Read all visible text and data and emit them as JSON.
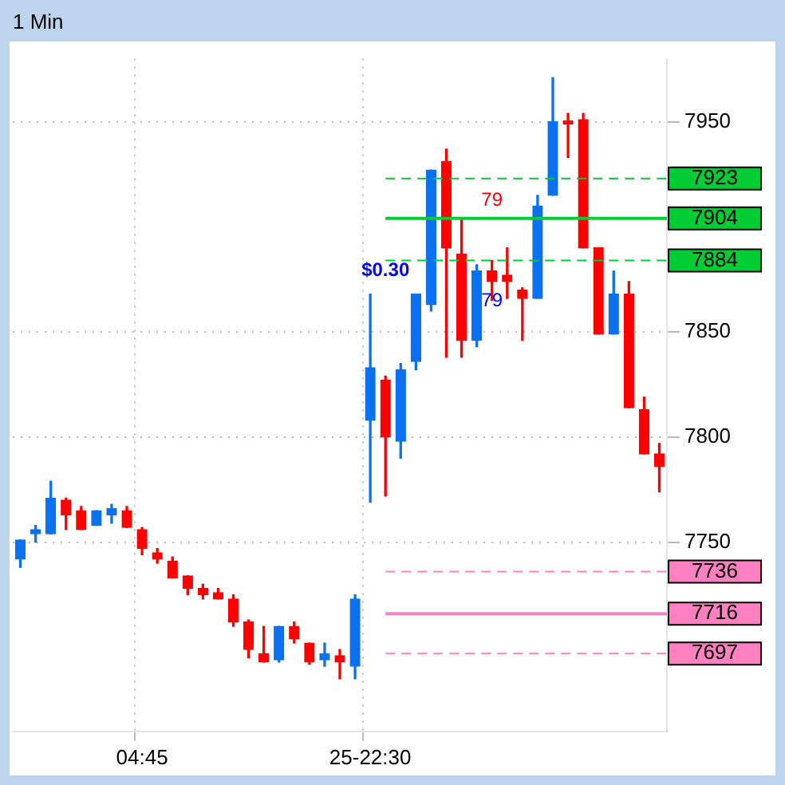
{
  "chart_data": {
    "type": "candlestick",
    "title": "1 Min",
    "categories": [
      null,
      null,
      null,
      null,
      null,
      null,
      null,
      null,
      "04:45",
      null,
      null,
      null,
      null,
      null,
      null,
      null,
      null,
      null,
      null,
      null,
      null,
      null,
      null,
      "25-22:30",
      null,
      null,
      null,
      null,
      null,
      null,
      null,
      null,
      null,
      null,
      null,
      null,
      null,
      null,
      null,
      null,
      null,
      null,
      null
    ],
    "ohlc": [
      [
        7742,
        7751,
        7738,
        7751
      ],
      [
        7754,
        7758,
        7750,
        7756
      ],
      [
        7754,
        7779,
        7754,
        7771
      ],
      [
        7770,
        7771,
        7756,
        7763
      ],
      [
        7765,
        7767,
        7756,
        7756
      ],
      [
        7758,
        7765,
        7758,
        7765
      ],
      [
        7763,
        7768,
        7759,
        7766
      ],
      [
        7765,
        7767,
        7757,
        7757
      ],
      [
        7756,
        7757,
        7744,
        7747
      ],
      [
        7745,
        7747,
        7740,
        7742
      ],
      [
        7741,
        7743,
        7733,
        7733
      ],
      [
        7734,
        7734,
        7725,
        7728
      ],
      [
        7728,
        7730,
        7723,
        7725
      ],
      [
        7726,
        7728,
        7723,
        7723
      ],
      [
        7723,
        7725,
        7710,
        7712
      ],
      [
        7712,
        7713,
        7695,
        7699
      ],
      [
        7697,
        7710,
        7693,
        7693
      ],
      [
        7694,
        7710,
        7693,
        7710
      ],
      [
        7710,
        7712,
        7702,
        7704
      ],
      [
        7702,
        7702,
        7692,
        7693
      ],
      [
        7694,
        7702,
        7691,
        7697
      ],
      [
        7696,
        7699,
        7685,
        7693
      ],
      [
        7691,
        7725,
        7685,
        7723
      ],
      [
        7808,
        7868,
        7769,
        7833
      ],
      [
        7827,
        7829,
        7772,
        7800
      ],
      [
        7798,
        7835,
        7790,
        7832
      ],
      [
        7836,
        7868,
        7832,
        7868
      ],
      [
        7863,
        7927,
        7860,
        7927
      ],
      [
        7931,
        7937,
        7838,
        7890
      ],
      [
        7887,
        7904,
        7838,
        7846
      ],
      [
        7846,
        7882,
        7843,
        7879
      ],
      [
        7879,
        7884,
        7865,
        7874
      ],
      [
        7877,
        7890,
        7866,
        7874
      ],
      [
        7870,
        7871,
        7846,
        7866
      ],
      [
        7866,
        7915,
        7866,
        7910
      ],
      [
        7915,
        7971,
        7915,
        7950
      ],
      [
        7950,
        7954,
        7933,
        7949
      ],
      [
        7951,
        7954,
        7890,
        7890
      ],
      [
        7890,
        7890,
        7849,
        7849
      ],
      [
        7849,
        7879,
        7849,
        7868
      ],
      [
        7868,
        7874,
        7814,
        7814
      ],
      [
        7813,
        7819,
        7792,
        7792
      ],
      [
        7792,
        7797,
        7774,
        7786
      ]
    ],
    "colors": [
      "#0a72f0",
      "#0a72f0",
      "#0a72f0",
      "#ff0000",
      "#ff0000",
      "#0a72f0",
      "#0a72f0",
      "#ff0000",
      "#ff0000",
      "#ff0000",
      "#ff0000",
      "#ff0000",
      "#ff0000",
      "#ff0000",
      "#ff0000",
      "#ff0000",
      "#ff0000",
      "#0a72f0",
      "#ff0000",
      "#ff0000",
      "#0a72f0",
      "#ff0000",
      "#0a72f0",
      "#0a72f0",
      "#ff0000",
      "#0a72f0",
      "#0a72f0",
      "#0a72f0",
      "#ff0000",
      "#ff0000",
      "#0a72f0",
      "#ff0000",
      "#ff0000",
      "#ff0000",
      "#0a72f0",
      "#0a72f0",
      "#ff0000",
      "#ff0000",
      "#ff0000",
      "#0a72f0",
      "#ff0000",
      "#ff0000",
      "#ff0000"
    ],
    "ylim": [
      7660,
      7980
    ],
    "yticks": [
      7750,
      7800,
      7850,
      7950
    ],
    "grid": true,
    "ref_lines": [
      {
        "axis": "y",
        "value": 7923,
        "label": "7923",
        "color": "#00cc33",
        "line_style": "dashed"
      },
      {
        "axis": "y",
        "value": 7904,
        "label": "7904",
        "color": "#00cc33",
        "line_style": "solid"
      },
      {
        "axis": "y",
        "value": 7884,
        "label": "7884",
        "color": "#00cc33",
        "line_style": "dashed"
      },
      {
        "axis": "y",
        "value": 7736,
        "label": "7736",
        "color": "#ff80c0",
        "line_style": "dashed"
      },
      {
        "axis": "y",
        "value": 7716,
        "label": "7716",
        "color": "#ff80c0",
        "line_style": "solid"
      },
      {
        "axis": "y",
        "value": 7697,
        "label": "7697",
        "color": "#ff80c0",
        "line_style": "dashed"
      }
    ],
    "annotations": [
      "79",
      "$0.30",
      "79"
    ]
  }
}
